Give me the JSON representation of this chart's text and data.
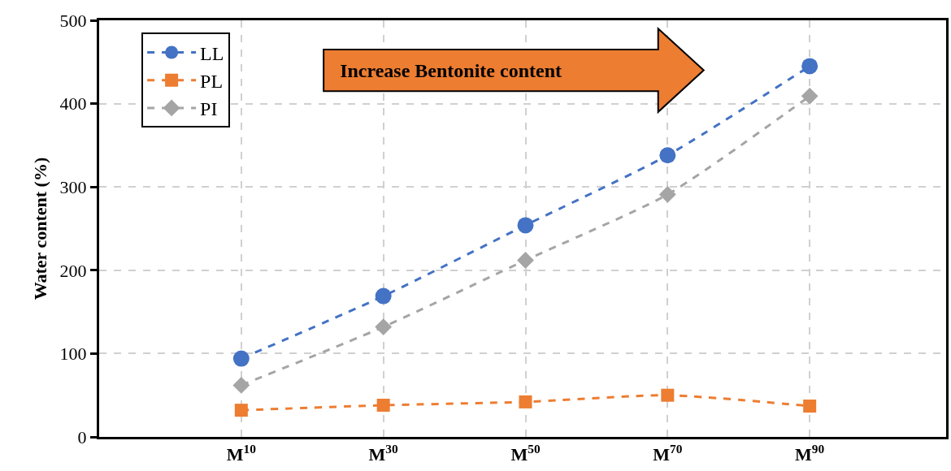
{
  "chart_data": {
    "type": "line",
    "ylabel": "Water content (%)",
    "categories": [
      "M$^{10}$",
      "M$^{30}$",
      "M$^{50}$",
      "M$^{70}$",
      "M$^{90}$"
    ],
    "series": [
      {
        "name": "LL",
        "color": "#4472c4",
        "marker": "circle",
        "values": [
          94,
          169,
          254,
          338,
          445
        ]
      },
      {
        "name": "PL",
        "color": "#ed7d31",
        "marker": "square",
        "values": [
          32,
          38,
          42,
          50,
          37
        ]
      },
      {
        "name": "PI",
        "color": "#a5a5a5",
        "marker": "diamond",
        "values": [
          62,
          132,
          212,
          291,
          409
        ]
      }
    ],
    "ylim": [
      0,
      500
    ],
    "yticks": [
      0,
      100,
      200,
      300,
      400,
      500
    ],
    "grid": true,
    "legend": "top left",
    "line_style": "dashed",
    "annotations": [
      "Increase Bentonite content"
    ]
  }
}
